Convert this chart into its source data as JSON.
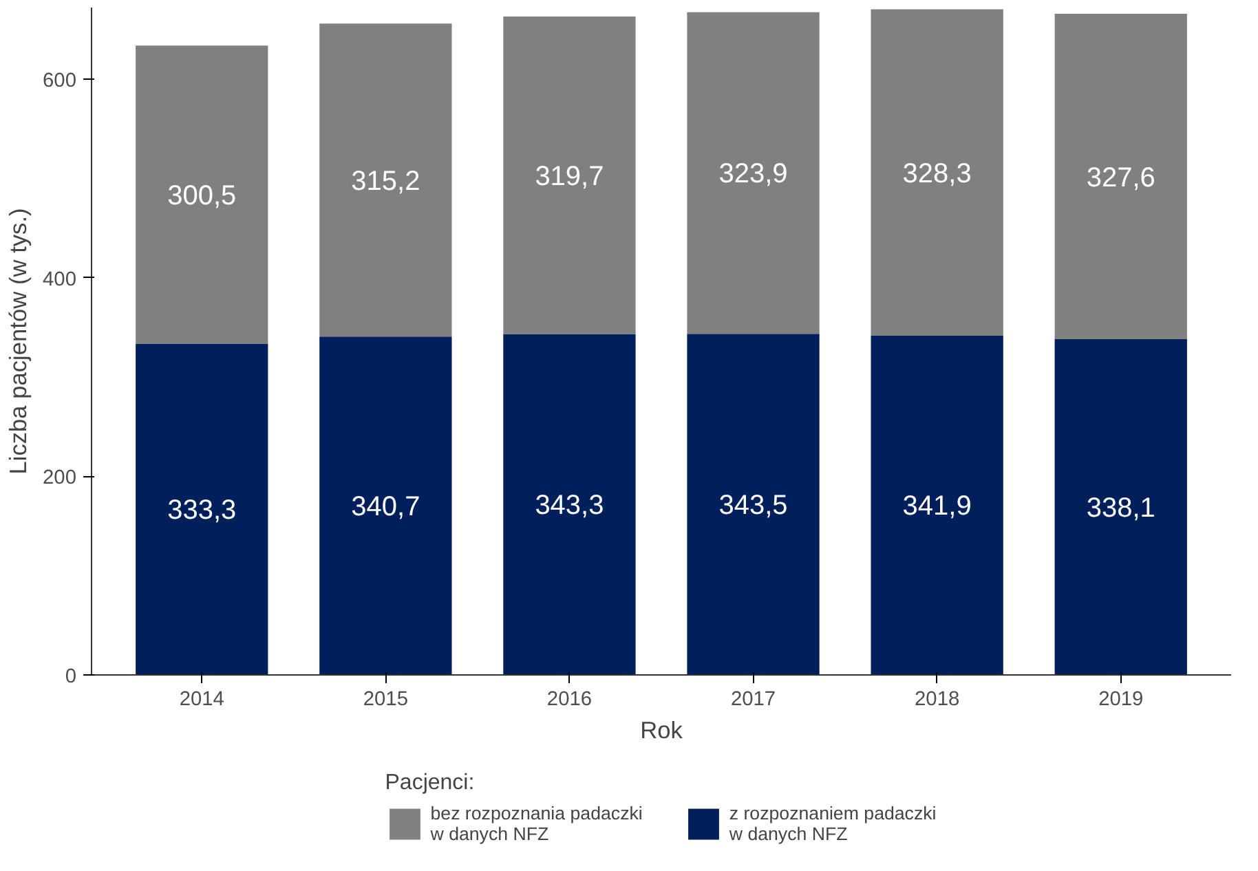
{
  "chart_data": {
    "type": "bar",
    "stacked": true,
    "xlabel": "Rok",
    "ylabel": "Liczba pacjentów (w tys.)",
    "legend_title": "Pacjenci:",
    "legend": "bottom",
    "grid": false,
    "categories": [
      "2014",
      "2015",
      "2016",
      "2017",
      "2018",
      "2019"
    ],
    "ylim": [
      0,
      672
    ],
    "yticks": [
      0,
      200,
      400,
      600
    ],
    "series": [
      {
        "name": "z rozpoznaniem padaczki\nw danych NFZ",
        "color": "#001f5b",
        "values": [
          333.3,
          340.7,
          343.3,
          343.5,
          341.9,
          338.1
        ],
        "value_labels": [
          "333,3",
          "340,7",
          "343,3",
          "343,5",
          "341,9",
          "338,1"
        ]
      },
      {
        "name": "bez rozpoznania padaczki\nw danych NFZ",
        "color": "#808080",
        "values": [
          300.5,
          315.2,
          319.7,
          323.9,
          328.3,
          327.6
        ],
        "value_labels": [
          "300,5",
          "315,2",
          "319,7",
          "323,9",
          "328,3",
          "327,6"
        ]
      }
    ]
  }
}
